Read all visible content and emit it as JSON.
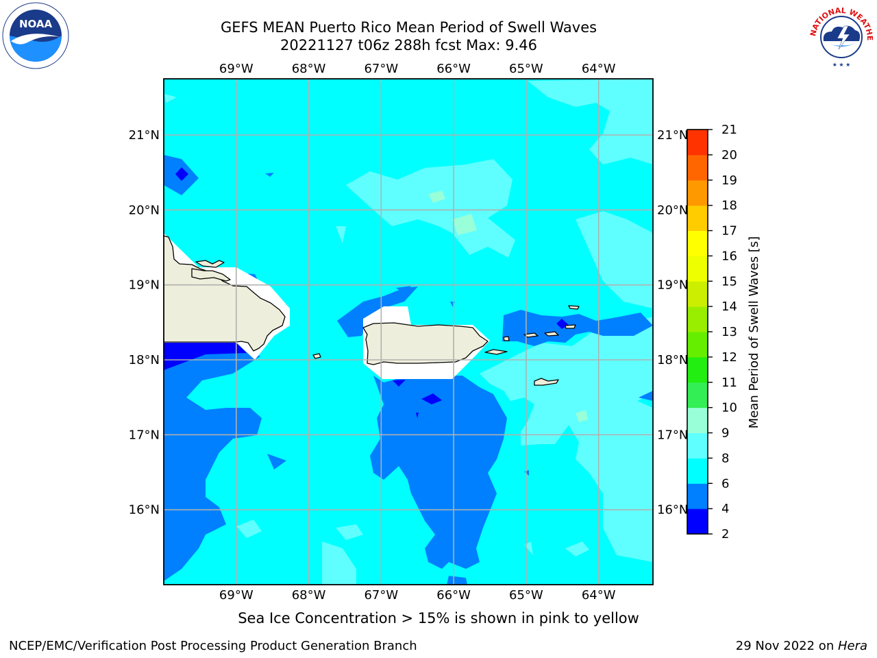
{
  "title": {
    "line1": "GEFS MEAN Puerto Rico Mean Period of Swell Waves",
    "line2": "20221127 t06z 288h fcst   Max: 9.46"
  },
  "logos": {
    "left": {
      "icon": "noaa-logo-icon",
      "text": "NOAA",
      "ring_text": "NATIONAL OCEANIC AND ATMOSPHERIC ADMINISTRATION · U.S. DEPARTMENT OF COMMERCE"
    },
    "right": {
      "icon": "nws-logo-icon",
      "ring_text": "NATIONAL WEATHER SERVICE"
    }
  },
  "map": {
    "lon_labels": [
      "69°W",
      "68°W",
      "67°W",
      "66°W",
      "65°W",
      "64°W"
    ],
    "lat_labels": [
      "21°N",
      "20°N",
      "19°N",
      "18°N",
      "17°N",
      "16°N"
    ],
    "lon_values": [
      -69,
      -68,
      -67,
      -66,
      -65,
      -64
    ],
    "lat_values": [
      21,
      20,
      19,
      18,
      17,
      16
    ],
    "extent": {
      "lon_min": -70.0,
      "lon_max": -63.25,
      "lat_min": 15.0,
      "lat_max": 21.75
    },
    "grid_color": "#b0b0b0",
    "land_color": "#eeeedc",
    "colors": {
      "c2_4": "#0000ff",
      "c4_6": "#0080ff",
      "c6_8": "#00ffff",
      "c8_9": "#60ffff",
      "c9_10": "#99ffd9"
    }
  },
  "colorbar": {
    "label": "Mean Period of Swell Waves [s]",
    "ticks": [
      "2",
      "4",
      "6",
      "8",
      "9",
      "10",
      "11",
      "12",
      "13",
      "14",
      "15",
      "16",
      "17",
      "18",
      "19",
      "20",
      "21"
    ],
    "colors": [
      "#0000ff",
      "#0080ff",
      "#00ffff",
      "#60ffff",
      "#99ffd9",
      "#33ee55",
      "#22ee11",
      "#66ee00",
      "#99ee00",
      "#ccee00",
      "#eeff00",
      "#ffff00",
      "#ffcc00",
      "#ff9900",
      "#ff6600",
      "#ff3300"
    ]
  },
  "note": "Sea Ice Concentration > 15% is shown in pink to yellow",
  "footer": {
    "left": "NCEP/EMC/Verification Post Processing Product Generation Branch",
    "right_prefix": "29 Nov 2022 on ",
    "right_machine": "Hera"
  }
}
